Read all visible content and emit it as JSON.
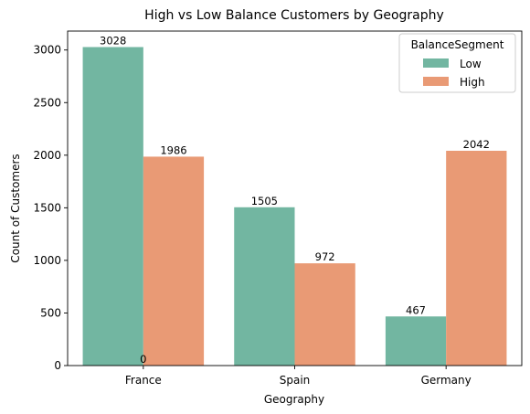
{
  "chart_data": {
    "type": "bar",
    "title": "High vs Low Balance Customers by Geography",
    "xlabel": "Geography",
    "ylabel": "Count of Customers",
    "categories": [
      "France",
      "Spain",
      "Germany"
    ],
    "series": [
      {
        "name": "Low",
        "values": [
          3028,
          1505,
          467
        ],
        "color": "#72B6A1"
      },
      {
        "name": "High",
        "values": [
          1986,
          972,
          2042
        ],
        "color": "#E99A75"
      }
    ],
    "extra_bar_labels": [
      "0"
    ],
    "ylim": [
      0,
      3180
    ],
    "yticks": [
      0,
      500,
      1000,
      1500,
      2000,
      2500,
      3000
    ],
    "grid": false,
    "legend": {
      "title": "BalanceSegment",
      "placement": "top-right"
    }
  }
}
